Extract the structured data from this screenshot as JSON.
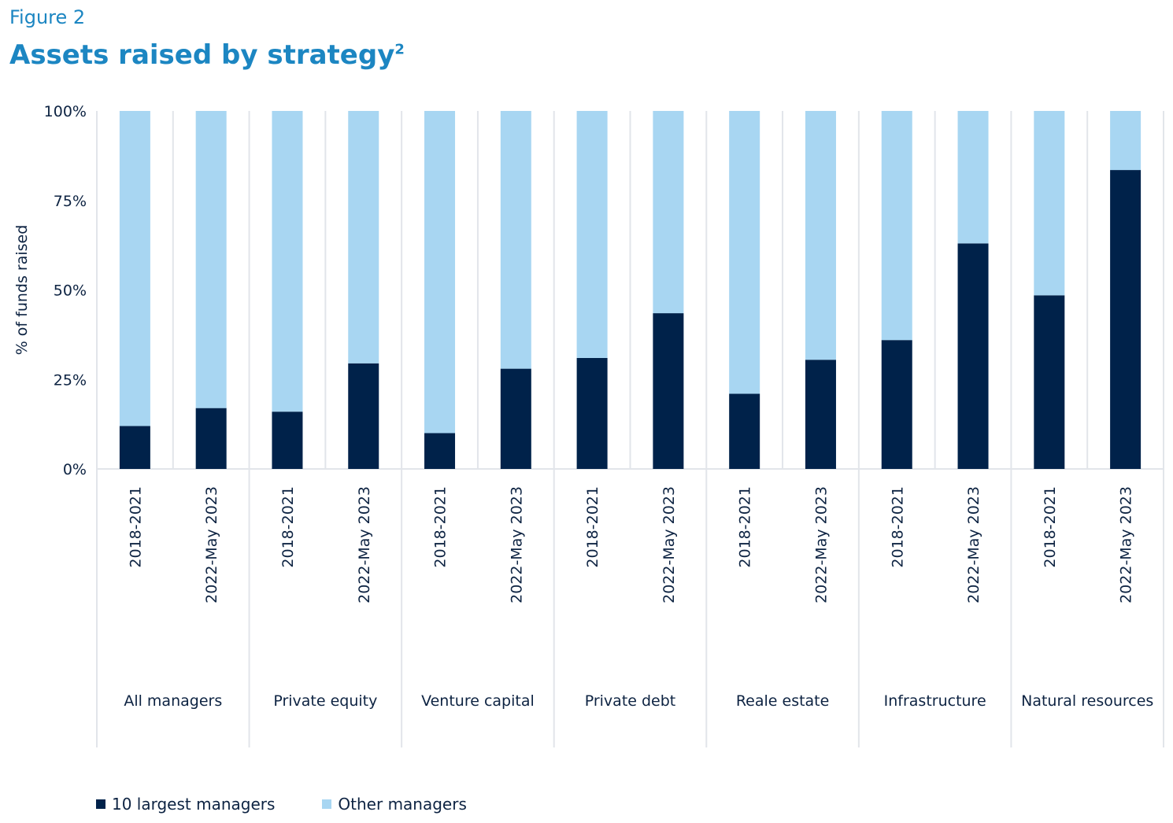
{
  "figure_label": "Figure 2",
  "title": "Assets raised by strategy",
  "title_superscript": "2",
  "colors": {
    "ten_largest": "#00224a",
    "other": "#a8d6f2",
    "title": "#1c86c2",
    "axis_text": "#0d2342",
    "grid": "#e2e5ea"
  },
  "chart_data": {
    "type": "bar",
    "stacked": true,
    "ylabel": "% of funds raised",
    "ylim": [
      0,
      100
    ],
    "yticks": [
      "0%",
      "25%",
      "50%",
      "75%",
      "100%"
    ],
    "groups": [
      "All managers",
      "Private equity",
      "Venture capital",
      "Private debt",
      "Reale estate",
      "Infrastructure",
      "Natural resources"
    ],
    "periods": [
      "2018-2021",
      "2022-May 2023"
    ],
    "series": [
      {
        "name": "10 largest managers",
        "values": [
          12,
          17,
          16,
          29.5,
          10,
          28,
          31,
          43.5,
          21,
          30.5,
          36,
          63,
          48.5,
          83.5
        ]
      },
      {
        "name": "Other managers",
        "values": [
          88,
          83,
          84,
          70.5,
          90,
          72,
          69,
          56.5,
          79,
          69.5,
          64,
          37,
          51.5,
          16.5
        ]
      }
    ],
    "legend_position": "bottom-left"
  },
  "legend": [
    {
      "label": "10 largest managers"
    },
    {
      "label": "Other managers"
    }
  ]
}
